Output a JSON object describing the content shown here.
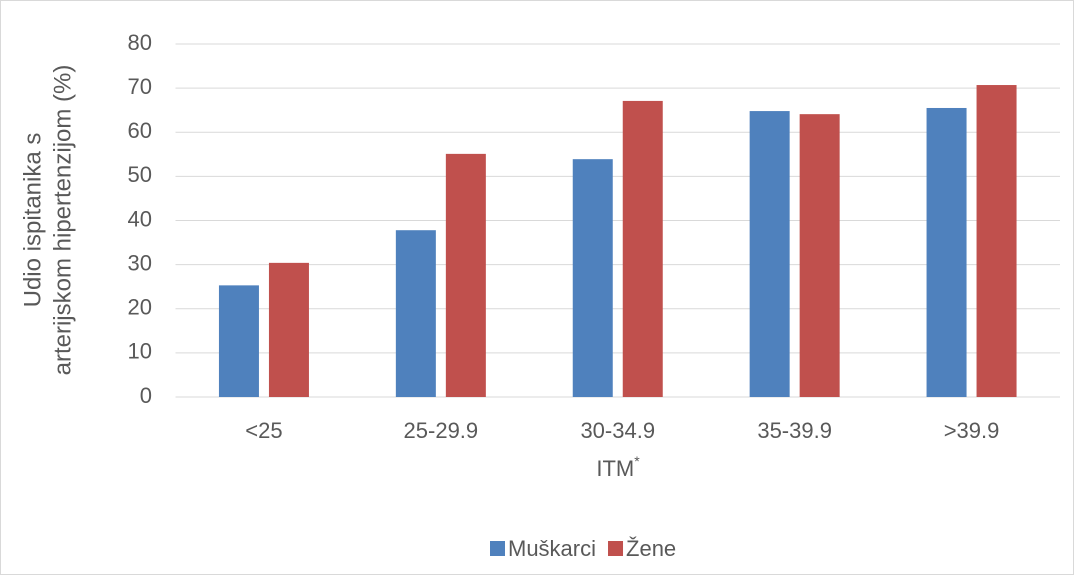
{
  "chart_data": {
    "type": "bar",
    "categories": [
      "<25",
      "25-29.9",
      "30-34.9",
      "35-39.9",
      ">39.9"
    ],
    "series": [
      {
        "name": "Muškarci",
        "color": "#4f81bd",
        "values": [
          25.3,
          37.8,
          53.9,
          64.8,
          65.5
        ]
      },
      {
        "name": "Žene",
        "color": "#c0504d",
        "values": [
          30.4,
          55.1,
          67.1,
          64.1,
          70.7
        ]
      }
    ],
    "ylim": [
      0,
      80
    ],
    "yticks": [
      0,
      10,
      20,
      30,
      40,
      50,
      60,
      70,
      80
    ],
    "grid": true,
    "ylabel": [
      "Udio ispitanika s",
      "arterijskom hipertenzijom (%)"
    ],
    "xlabel": "ITM",
    "xlabel_footnote": "*",
    "legend": "bottom"
  }
}
